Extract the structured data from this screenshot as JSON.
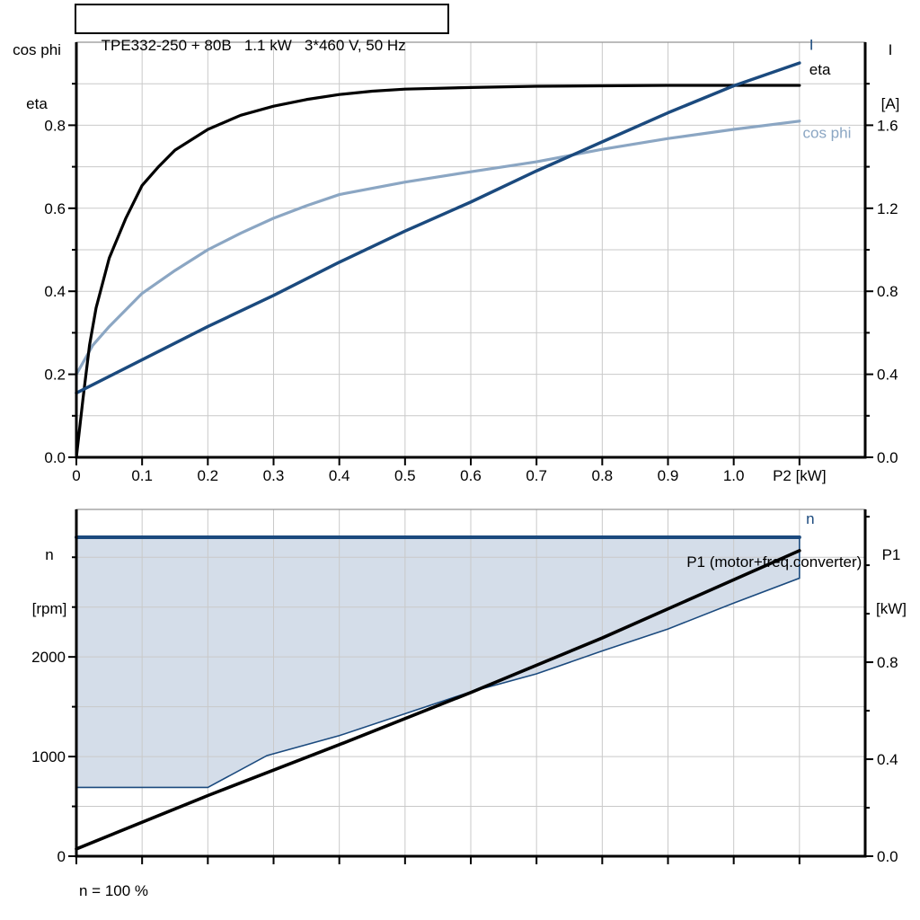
{
  "colors": {
    "dark_blue": "#1b4a7e",
    "light_blue": "#8ba6c3",
    "fill_blue": "#d4dde9",
    "black": "#000000",
    "grid": "#c9c9c9",
    "frame": "#909090"
  },
  "axis_headers": {
    "top_left": [
      "cos phi",
      "eta"
    ],
    "top_right": [
      "I",
      "[A]"
    ],
    "bottom_left": [
      "n",
      "[rpm]"
    ],
    "bottom_right": [
      "P1",
      "[kW]"
    ]
  },
  "chart_data": [
    {
      "type": "line",
      "title": "TPE332-250 + 80B   1.1 kW   3*460 V, 50 Hz",
      "x_axis": {
        "label": "P2 [kW]",
        "range": [
          0,
          1.2
        ],
        "grid_step": 0.1,
        "ticks": [
          {
            "v": 0,
            "t": "0"
          },
          {
            "v": 0.1,
            "t": "0.1"
          },
          {
            "v": 0.2,
            "t": "0.2"
          },
          {
            "v": 0.3,
            "t": "0.3"
          },
          {
            "v": 0.4,
            "t": "0.4"
          },
          {
            "v": 0.5,
            "t": "0.5"
          },
          {
            "v": 0.6,
            "t": "0.6"
          },
          {
            "v": 0.7,
            "t": "0.7"
          },
          {
            "v": 0.8,
            "t": "0.8"
          },
          {
            "v": 0.9,
            "t": "0.9"
          },
          {
            "v": 1.0,
            "t": "1.0"
          },
          {
            "v": 1.1,
            "t": "P2 [kW]"
          }
        ]
      },
      "y_left": {
        "label": "cos phi / eta",
        "range": [
          0,
          1.0
        ],
        "tick_step": 0.1,
        "labels": [
          {
            "v": 0,
            "t": "0.0"
          },
          {
            "v": 0.2,
            "t": "0.2"
          },
          {
            "v": 0.4,
            "t": "0.4"
          },
          {
            "v": 0.6,
            "t": "0.6"
          },
          {
            "v": 0.8,
            "t": "0.8"
          }
        ]
      },
      "y_right": {
        "label": "I [A]",
        "range": [
          0,
          2.0
        ],
        "tick_step": 0.2,
        "labels": [
          {
            "v": 0,
            "t": "0.0"
          },
          {
            "v": 0.4,
            "t": "0.4"
          },
          {
            "v": 0.8,
            "t": "0.8"
          },
          {
            "v": 1.2,
            "t": "1.2"
          },
          {
            "v": 1.6,
            "t": "1.6"
          }
        ]
      },
      "series": [
        {
          "name": "cos-phi",
          "axis": "left",
          "color": "light_blue",
          "width": 3.2,
          "points": [
            [
              0,
              0.2
            ],
            [
              0.025,
              0.27
            ],
            [
              0.05,
              0.315
            ],
            [
              0.1,
              0.395
            ],
            [
              0.15,
              0.45
            ],
            [
              0.2,
              0.5
            ],
            [
              0.25,
              0.54
            ],
            [
              0.3,
              0.576
            ],
            [
              0.35,
              0.606
            ],
            [
              0.4,
              0.633
            ],
            [
              0.5,
              0.663
            ],
            [
              0.6,
              0.688
            ],
            [
              0.7,
              0.712
            ],
            [
              0.8,
              0.742
            ],
            [
              0.9,
              0.768
            ],
            [
              1.0,
              0.79
            ],
            [
              1.1,
              0.81
            ]
          ]
        },
        {
          "name": "eta",
          "axis": "left",
          "color": "black",
          "width": 3.2,
          "points": [
            [
              0,
              0
            ],
            [
              0.005,
              0.07
            ],
            [
              0.01,
              0.14
            ],
            [
              0.02,
              0.27
            ],
            [
              0.03,
              0.36
            ],
            [
              0.05,
              0.48
            ],
            [
              0.075,
              0.575
            ],
            [
              0.1,
              0.655
            ],
            [
              0.125,
              0.7
            ],
            [
              0.15,
              0.74
            ],
            [
              0.2,
              0.79
            ],
            [
              0.25,
              0.824
            ],
            [
              0.3,
              0.846
            ],
            [
              0.35,
              0.862
            ],
            [
              0.4,
              0.874
            ],
            [
              0.45,
              0.882
            ],
            [
              0.5,
              0.887
            ],
            [
              0.6,
              0.891
            ],
            [
              0.7,
              0.894
            ],
            [
              0.8,
              0.895
            ],
            [
              0.9,
              0.896
            ],
            [
              1.0,
              0.896
            ],
            [
              1.1,
              0.896
            ]
          ]
        },
        {
          "name": "I",
          "axis": "right",
          "color": "dark_blue",
          "width": 3.5,
          "points": [
            [
              0,
              0.31
            ],
            [
              0.1,
              0.47
            ],
            [
              0.2,
              0.63
            ],
            [
              0.3,
              0.78
            ],
            [
              0.4,
              0.94
            ],
            [
              0.5,
              1.09
            ],
            [
              0.6,
              1.23
            ],
            [
              0.7,
              1.38
            ],
            [
              0.8,
              1.52
            ],
            [
              0.9,
              1.66
            ],
            [
              1.0,
              1.79
            ],
            [
              1.1,
              1.9
            ]
          ]
        }
      ],
      "curve_labels": [
        {
          "text": "I",
          "axis": "right",
          "x": 1.115,
          "y": 1.99,
          "color": "dark_blue",
          "anchor": "start"
        },
        {
          "text": "eta",
          "axis": "left",
          "x": 1.115,
          "y": 0.935,
          "color": "black",
          "anchor": "start"
        },
        {
          "text": "cos phi",
          "axis": "left",
          "x": 1.105,
          "y": 0.782,
          "color": "light_blue",
          "anchor": "start"
        }
      ]
    },
    {
      "type": "line+area",
      "x_axis": {
        "label": "",
        "range": [
          0,
          1.2
        ],
        "grid_step": 0.1,
        "ticks": [
          {
            "v": 0,
            "t": ""
          },
          {
            "v": 0.1,
            "t": ""
          },
          {
            "v": 0.2,
            "t": ""
          },
          {
            "v": 0.3,
            "t": ""
          },
          {
            "v": 0.4,
            "t": ""
          },
          {
            "v": 0.5,
            "t": ""
          },
          {
            "v": 0.6,
            "t": ""
          },
          {
            "v": 0.7,
            "t": ""
          },
          {
            "v": 0.8,
            "t": ""
          },
          {
            "v": 0.9,
            "t": ""
          },
          {
            "v": 1.0,
            "t": ""
          },
          {
            "v": 1.1,
            "t": ""
          }
        ]
      },
      "y_left": {
        "label": "n [rpm]",
        "range": [
          0,
          3480
        ],
        "tick_step": 500,
        "labels": [
          {
            "v": 0,
            "t": "0"
          },
          {
            "v": 1000,
            "t": "1000"
          },
          {
            "v": 2000,
            "t": "2000"
          }
        ]
      },
      "y_right": {
        "label": "P1 [kW]",
        "range": [
          0,
          1.43
        ],
        "tick_step": 0.2,
        "labels": [
          {
            "v": 0,
            "t": "0.0"
          },
          {
            "v": 0.4,
            "t": "0.4"
          },
          {
            "v": 0.8,
            "t": "0.8"
          }
        ]
      },
      "area": {
        "name": "speed-control-range",
        "fill": "fill_blue",
        "stroke": "dark_blue",
        "points": [
          [
            0,
            3200
          ],
          [
            1.1,
            3200
          ],
          [
            1.1,
            2790
          ],
          [
            1.0,
            2540
          ],
          [
            0.9,
            2280
          ],
          [
            0.8,
            2060
          ],
          [
            0.7,
            1830
          ],
          [
            0.6,
            1650
          ],
          [
            0.5,
            1430
          ],
          [
            0.4,
            1210
          ],
          [
            0.29,
            1010
          ],
          [
            0.2,
            690
          ],
          [
            0,
            690
          ]
        ]
      },
      "series": [
        {
          "name": "P1-motor-freq-converter",
          "axis": "right",
          "color": "black",
          "width": 3.6,
          "points": [
            [
              0,
              0.03
            ],
            [
              0.2,
              0.25
            ],
            [
              0.4,
              0.46
            ],
            [
              0.6,
              0.675
            ],
            [
              0.8,
              0.9
            ],
            [
              0.95,
              1.08
            ],
            [
              1.1,
              1.26
            ]
          ]
        },
        {
          "name": "n",
          "axis": "left",
          "color": "dark_blue",
          "width": 4,
          "points": [
            [
              0,
              3200
            ],
            [
              1.1,
              3200
            ]
          ]
        }
      ],
      "curve_labels": [
        {
          "text": "n",
          "axis": "left",
          "x": 1.11,
          "y": 3390,
          "color": "dark_blue",
          "anchor": "start"
        },
        {
          "text": "P1 (motor+freq.converter)",
          "axis": "right",
          "x": 1.195,
          "y": 1.215,
          "color": "black",
          "anchor": "end"
        }
      ],
      "annotation": "n = 100 %"
    }
  ]
}
